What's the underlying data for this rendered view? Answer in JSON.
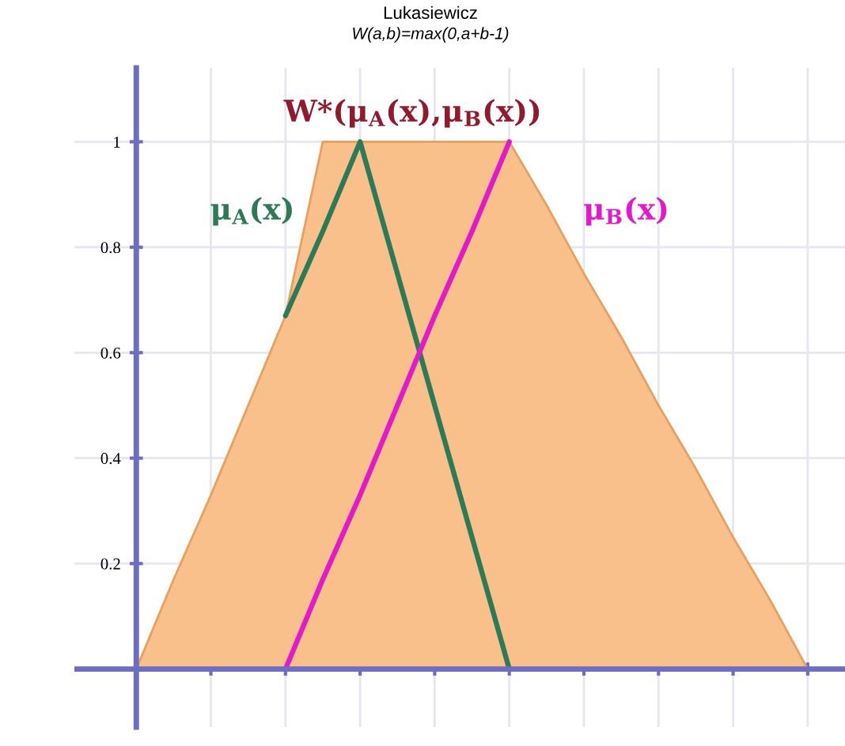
{
  "chart_data": {
    "type": "area",
    "title": "Lukasiewicz",
    "subtitle": "W(a,b)=max(0,a+b-1)",
    "categories": [
      null,
      null,
      null,
      null,
      null,
      null,
      null,
      null,
      null,
      null,
      null,
      null,
      null,
      null,
      null,
      null,
      null,
      null,
      null
    ],
    "series": [
      {
        "name": "W*(μ$_{A}$(x),μ$_{B}$(x))",
        "color": "#f9c08c",
        "values": [
          0,
          0.17,
          0.33,
          0.5,
          0.67,
          1,
          1,
          1,
          1,
          1,
          1,
          0.88,
          0.75,
          0.63,
          0.5,
          0.38,
          0.25,
          0.13,
          0
        ]
      },
      {
        "name": "μ$_{A}$(x)",
        "type": "line",
        "color": "#2f7a56",
        "values": [
          null,
          null,
          null,
          null,
          0.67,
          0.83,
          1,
          0.75,
          0.5,
          0.25,
          0,
          null,
          null,
          null,
          null,
          null,
          null,
          null,
          null
        ]
      },
      {
        "name": "μ$_{B}$(x)",
        "type": "line",
        "color": "#e01cc8",
        "values": [
          null,
          null,
          null,
          null,
          0,
          0.17,
          0.33,
          0.5,
          0.67,
          0.83,
          1,
          null,
          null,
          null,
          null,
          null,
          null,
          null,
          null
        ]
      }
    ],
    "ylim": [
      -0.11,
      1.14
    ],
    "yticks": [
      0.2,
      0.4,
      0.6,
      0.8,
      1
    ],
    "ref_lines": [
      {
        "axis": "y",
        "value": 0,
        "color": "#6e6ec0"
      }
    ],
    "grid": true,
    "tick_labels": "y",
    "line_style": "solid",
    "marker": "none"
  }
}
